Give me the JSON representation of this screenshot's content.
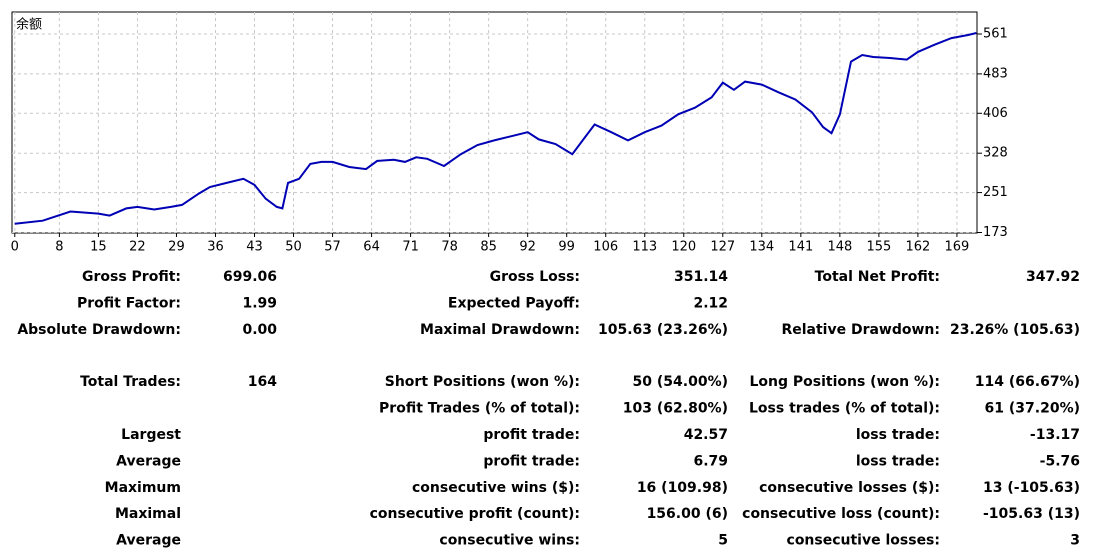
{
  "chart_data": {
    "type": "line",
    "title": "余额",
    "x": [
      0,
      5,
      10,
      15,
      17,
      20,
      22,
      25,
      28,
      30,
      33,
      35,
      38,
      41,
      43,
      45,
      47,
      48,
      49,
      51,
      53,
      55,
      57,
      60,
      63,
      65,
      68,
      70,
      72,
      74,
      77,
      80,
      83,
      86,
      89,
      92,
      94,
      97,
      100,
      102,
      104,
      107,
      110,
      113,
      116,
      119,
      122,
      125,
      127,
      129,
      131,
      134,
      137,
      140,
      143,
      145,
      146.5,
      148,
      150,
      152,
      154,
      157,
      160,
      162,
      165,
      168,
      171,
      172.5
    ],
    "series": [
      {
        "name": "余额",
        "color": "#0000b4",
        "values": [
          190,
          196,
          214,
          210,
          206,
          220,
          223,
          218,
          223,
          227,
          249,
          262,
          270,
          278,
          266,
          239,
          223,
          220,
          270,
          278,
          307,
          311,
          311,
          301,
          297,
          313,
          315,
          311,
          320,
          317,
          303,
          326,
          344,
          353,
          361,
          369,
          355,
          346,
          326,
          355,
          384,
          369,
          353,
          369,
          382,
          404,
          417,
          437,
          466,
          452,
          468,
          462,
          447,
          433,
          408,
          379,
          367,
          404,
          507,
          520,
          516,
          514,
          511,
          526,
          540,
          553,
          559,
          563
        ]
      }
    ],
    "xlim": [
      -0.5,
      172.6
    ],
    "xticks": [
      0,
      8,
      15,
      22,
      29,
      36,
      43,
      50,
      57,
      64,
      71,
      78,
      85,
      92,
      99,
      106,
      113,
      120,
      127,
      134,
      141,
      148,
      155,
      162,
      169
    ],
    "ylim": [
      172,
      604
    ],
    "yticks": [
      173,
      251,
      328,
      406,
      483,
      561
    ],
    "grid": true
  },
  "stats": {
    "rows": [
      [
        "Gross Profit:",
        "699.06",
        "Gross Loss:",
        "351.14",
        "Total Net Profit:",
        "347.92"
      ],
      [
        "Profit Factor:",
        "1.99",
        "Expected Payoff:",
        "2.12",
        null,
        null
      ],
      [
        "Absolute Drawdown:",
        "0.00",
        "Maximal Drawdown:",
        "105.63 (23.26%)",
        "Relative Drawdown:",
        "23.26% (105.63)"
      ],
      [
        "Total Trades:",
        "164",
        "Short Positions (won %):",
        "50 (54.00%)",
        "Long Positions (won %):",
        "114 (66.67%)"
      ],
      [
        null,
        null,
        "Profit Trades (% of total):",
        "103 (62.80%)",
        "Loss trades (% of total):",
        "61 (37.20%)"
      ],
      [
        "Largest",
        null,
        "profit trade:",
        "42.57",
        "loss trade:",
        "-13.17"
      ],
      [
        "Average",
        null,
        "profit trade:",
        "6.79",
        "loss trade:",
        "-5.76"
      ],
      [
        "Maximum",
        null,
        "consecutive wins ($):",
        "16 (109.98)",
        "consecutive losses ($):",
        "13 (-105.63)"
      ],
      [
        "Maximal",
        null,
        "consecutive profit (count):",
        "156.00 (6)",
        "consecutive loss (count):",
        "-105.63 (13)"
      ],
      [
        "Average",
        null,
        "consecutive wins:",
        "5",
        "consecutive losses:",
        "3"
      ]
    ]
  }
}
